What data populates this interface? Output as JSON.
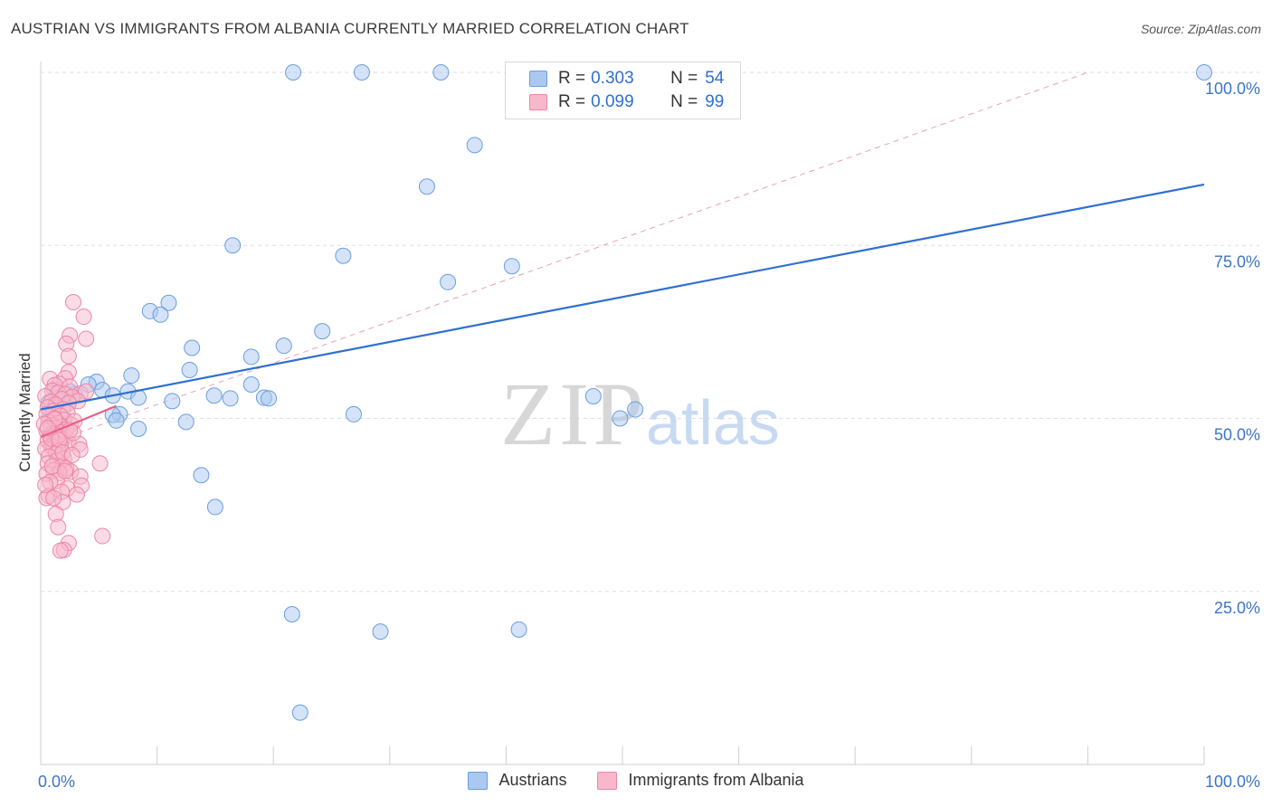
{
  "title": "AUSTRIAN VS IMMIGRANTS FROM ALBANIA CURRENTLY MARRIED CORRELATION CHART",
  "source": "Source: ZipAtlas.com",
  "watermark": {
    "zip": "ZIP",
    "atlas": "atlas"
  },
  "legend": {
    "rows": [
      {
        "r_label": "R =",
        "r_value": "0.303",
        "n_label": "N =",
        "n_value": "54"
      },
      {
        "r_label": "R =",
        "r_value": "0.099",
        "n_label": "N =",
        "n_value": "99"
      }
    ]
  },
  "bottom_legend": {
    "series1": "Austrians",
    "series2": "Immigrants from Albania"
  },
  "colors": {
    "blue_fill": "#aac8f0",
    "blue_stroke": "#6b9de0",
    "blue_line": "#2f6fd0",
    "pink_fill": "#f7b8cc",
    "pink_stroke": "#ec86a6",
    "pink_line": "#e8608a",
    "axis_text": "#3b74c9",
    "grid": "#dddddd"
  },
  "chart_data": {
    "type": "scatter",
    "title": "AUSTRIAN VS IMMIGRANTS FROM ALBANIA CURRENTLY MARRIED CORRELATION CHART",
    "xlabel": "",
    "ylabel": "Currently Married",
    "xlim": [
      0,
      100
    ],
    "ylim": [
      0,
      104
    ],
    "x_tick_labels": [
      "0.0%",
      "100.0%"
    ],
    "y_ticks": [
      25,
      50,
      75,
      100
    ],
    "y_tick_labels": [
      "25.0%",
      "50.0%",
      "75.0%",
      "100.0%"
    ],
    "series": [
      {
        "name": "Austrians",
        "r": 0.303,
        "n": 54,
        "trend": {
          "x": [
            0,
            100
          ],
          "y": [
            51.3,
            83.8
          ]
        },
        "points": [
          [
            21.7,
            100
          ],
          [
            27.6,
            100
          ],
          [
            34.4,
            100
          ],
          [
            100,
            100
          ],
          [
            37.3,
            89.5
          ],
          [
            33.2,
            83.5
          ],
          [
            16.5,
            75
          ],
          [
            26,
            73.5
          ],
          [
            40.5,
            72
          ],
          [
            35,
            69.7
          ],
          [
            11,
            66.7
          ],
          [
            9.4,
            65.5
          ],
          [
            10.3,
            65
          ],
          [
            24.2,
            62.6
          ],
          [
            13,
            60.2
          ],
          [
            20.9,
            60.5
          ],
          [
            18.1,
            58.9
          ],
          [
            12.8,
            57
          ],
          [
            7.8,
            56.2
          ],
          [
            4.8,
            55.3
          ],
          [
            1.2,
            54.2
          ],
          [
            4.1,
            54.9
          ],
          [
            5.3,
            54.1
          ],
          [
            6.2,
            53.3
          ],
          [
            7.5,
            53.9
          ],
          [
            18.1,
            54.9
          ],
          [
            14.9,
            53.3
          ],
          [
            11.3,
            52.5
          ],
          [
            16.3,
            52.9
          ],
          [
            19.2,
            53
          ],
          [
            19.6,
            52.9
          ],
          [
            2.9,
            53.5
          ],
          [
            1.3,
            53
          ],
          [
            0.7,
            52.3
          ],
          [
            0.8,
            50.4
          ],
          [
            8.4,
            53
          ],
          [
            6.8,
            50.6
          ],
          [
            26.9,
            50.6
          ],
          [
            47.5,
            53.2
          ],
          [
            51.1,
            51.3
          ],
          [
            49.8,
            50
          ],
          [
            6.2,
            50.5
          ],
          [
            6.5,
            49.7
          ],
          [
            12.5,
            49.5
          ],
          [
            8.4,
            48.5
          ],
          [
            1.5,
            48.9
          ],
          [
            0.9,
            48
          ],
          [
            13.8,
            41.8
          ],
          [
            15,
            37.2
          ],
          [
            21.6,
            21.7
          ],
          [
            29.2,
            19.2
          ],
          [
            41.1,
            19.5
          ],
          [
            22.3,
            7.5
          ],
          [
            2.5,
            53.9
          ]
        ]
      },
      {
        "name": "Immigrants from Albania",
        "r": 0.099,
        "n": 99,
        "trend": {
          "x": [
            0,
            6.5
          ],
          "y": [
            47.3,
            51.8
          ]
        },
        "points": [
          [
            2.8,
            66.8
          ],
          [
            3.7,
            64.7
          ],
          [
            3.9,
            61.5
          ],
          [
            2.5,
            62
          ],
          [
            2.2,
            60.8
          ],
          [
            2.4,
            59
          ],
          [
            2.4,
            56.7
          ],
          [
            2.1,
            55.8
          ],
          [
            0.8,
            55.7
          ],
          [
            1.6,
            55
          ],
          [
            1.2,
            54.8
          ],
          [
            2.5,
            54.6
          ],
          [
            1,
            54
          ],
          [
            1.5,
            53.7
          ],
          [
            3.4,
            53.6
          ],
          [
            2.1,
            53.5
          ],
          [
            3.9,
            53.9
          ],
          [
            0.4,
            53.2
          ],
          [
            2.7,
            53.1
          ],
          [
            1.8,
            52.8
          ],
          [
            3.2,
            52.5
          ],
          [
            0.9,
            52.4
          ],
          [
            2.4,
            52.2
          ],
          [
            1.3,
            52
          ],
          [
            0.6,
            51.6
          ],
          [
            1.9,
            51.3
          ],
          [
            1.1,
            51.1
          ],
          [
            2.3,
            50.8
          ],
          [
            0.5,
            50.6
          ],
          [
            1.7,
            50.4
          ],
          [
            1.2,
            50
          ],
          [
            2,
            49.8
          ],
          [
            0.7,
            49.5
          ],
          [
            1.5,
            49.3
          ],
          [
            2.6,
            49.1
          ],
          [
            0.9,
            49
          ],
          [
            1.8,
            48.8
          ],
          [
            1.3,
            48.6
          ],
          [
            2.2,
            48.4
          ],
          [
            0.5,
            48.2
          ],
          [
            1.6,
            48
          ],
          [
            1.0,
            47.8
          ],
          [
            2.0,
            47.6
          ],
          [
            0.8,
            47.4
          ],
          [
            1.4,
            47.2
          ],
          [
            1.9,
            47
          ],
          [
            0.6,
            46.8
          ],
          [
            1.2,
            46.6
          ],
          [
            2.4,
            46.4
          ],
          [
            1.7,
            46.2
          ],
          [
            0.9,
            46
          ],
          [
            3.3,
            46.3
          ],
          [
            3.4,
            45.5
          ],
          [
            1.1,
            45.8
          ],
          [
            0.4,
            45.6
          ],
          [
            1.5,
            45.3
          ],
          [
            1.3,
            44.9
          ],
          [
            0.7,
            44.5
          ],
          [
            2,
            44.2
          ],
          [
            1.4,
            43.9
          ],
          [
            0.6,
            43.5
          ],
          [
            1.9,
            43.2
          ],
          [
            5.1,
            43.5
          ],
          [
            2.2,
            42.8
          ],
          [
            1.1,
            42.5
          ],
          [
            2.6,
            42.3
          ],
          [
            1.6,
            42.1
          ],
          [
            0.5,
            42
          ],
          [
            3.4,
            41.6
          ],
          [
            1.4,
            41
          ],
          [
            0.8,
            40.8
          ],
          [
            3.5,
            40.3
          ],
          [
            2.3,
            39.9
          ],
          [
            1.8,
            39.4
          ],
          [
            3.1,
            39
          ],
          [
            0.7,
            38.8
          ],
          [
            0.5,
            38.5
          ],
          [
            1.9,
            37.9
          ],
          [
            1.3,
            36.2
          ],
          [
            1.5,
            34.3
          ],
          [
            5.3,
            33
          ],
          [
            2.4,
            32
          ],
          [
            2,
            31
          ],
          [
            1.7,
            30.9
          ],
          [
            1.2,
            49.9
          ],
          [
            2.9,
            49.6
          ],
          [
            0.3,
            49.2
          ],
          [
            1.5,
            47.5
          ],
          [
            2.8,
            47.9
          ],
          [
            0.9,
            47.1
          ],
          [
            1.6,
            46.9
          ],
          [
            2.5,
            48.3
          ],
          [
            0.6,
            48.6
          ],
          [
            1.9,
            45.1
          ],
          [
            1,
            43.1
          ],
          [
            2.7,
            44.7
          ],
          [
            0.4,
            40.4
          ],
          [
            1.1,
            38.5
          ],
          [
            2.1,
            42.4
          ]
        ]
      }
    ]
  }
}
